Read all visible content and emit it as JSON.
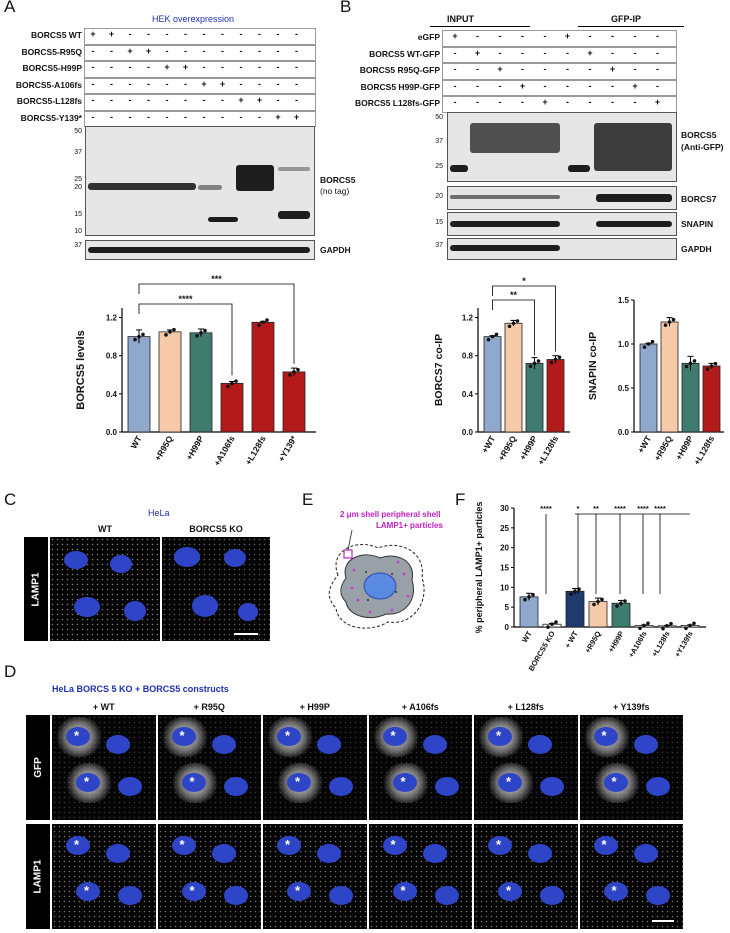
{
  "panels": {
    "A": "A",
    "B": "B",
    "C": "C",
    "D": "D",
    "E": "E",
    "F": "F"
  },
  "A": {
    "title": "HEK overexpression",
    "rows": [
      "BORCS5 WT",
      "BORCS5-R95Q",
      "BORCS5-H99P",
      "BORCS5-A106fs",
      "BORCS5-L128fs",
      "BORCS5-Y139*"
    ],
    "matrix": [
      [
        "+",
        "+",
        "-",
        "-",
        "-",
        "-",
        "-",
        "-",
        "-",
        "-",
        "-",
        "-"
      ],
      [
        "-",
        "-",
        "+",
        "+",
        "-",
        "-",
        "-",
        "-",
        "-",
        "-",
        "-",
        "-"
      ],
      [
        "-",
        "-",
        "-",
        "-",
        "+",
        "+",
        "-",
        "-",
        "-",
        "-",
        "-",
        "-"
      ],
      [
        "-",
        "-",
        "-",
        "-",
        "-",
        "-",
        "+",
        "+",
        "-",
        "-",
        "-",
        "-"
      ],
      [
        "-",
        "-",
        "-",
        "-",
        "-",
        "-",
        "-",
        "-",
        "+",
        "+",
        "-",
        "-"
      ],
      [
        "-",
        "-",
        "-",
        "-",
        "-",
        "-",
        "-",
        "-",
        "-",
        "-",
        "+",
        "+"
      ]
    ],
    "mw_main": [
      "50",
      "37",
      "25",
      "20",
      "15",
      "10"
    ],
    "mw_gapdh": [
      "37"
    ],
    "blot_label_1": "BORCS5",
    "blot_label_2": "(no tag)",
    "gapdh_label": "GAPDH"
  },
  "B": {
    "input_label": "INPUT",
    "gfpip_label": "GFP-IP",
    "rows": [
      "eGFP",
      "BORCS5 WT-GFP",
      "BORCS5 R95Q-GFP",
      "BORCS5 H99P-GFP",
      "BORCS5 L128fs-GFP"
    ],
    "matrix": [
      [
        "+",
        "-",
        "-",
        "-",
        "-",
        "+",
        "-",
        "-",
        "-",
        "-"
      ],
      [
        "-",
        "+",
        "-",
        "-",
        "-",
        "-",
        "+",
        "-",
        "-",
        "-"
      ],
      [
        "-",
        "-",
        "+",
        "-",
        "-",
        "-",
        "-",
        "+",
        "-",
        "-"
      ],
      [
        "-",
        "-",
        "-",
        "+",
        "-",
        "-",
        "-",
        "-",
        "+",
        "-"
      ],
      [
        "-",
        "-",
        "-",
        "-",
        "+",
        "-",
        "-",
        "-",
        "-",
        "+"
      ]
    ],
    "mw_main": [
      "50",
      "37",
      "25"
    ],
    "mw_borcs7": [
      "20"
    ],
    "mw_snapin": [
      "15"
    ],
    "mw_gapdh": [
      "37"
    ],
    "label_borcs5_1": "BORCS5",
    "label_borcs5_2": "(Anti-GFP)",
    "label_borcs7": "BORCS7",
    "label_snapin": "SNAPIN",
    "label_gapdh": "GAPDH"
  },
  "C": {
    "title": "HeLa",
    "cols": [
      "WT",
      "BORCS5 KO"
    ],
    "row_label": "LAMP1"
  },
  "D": {
    "title": "HeLa BORCS 5 KO + BORCS5 constructs",
    "cols": [
      "+ WT",
      "+ R95Q",
      "+ H99P",
      "+ A106fs",
      "+ L128fs",
      "+ Y139fs"
    ],
    "rows": [
      "GFP",
      "LAMP1"
    ],
    "asterisk": "*"
  },
  "E": {
    "label_1": "2 μm shell peripheral shell",
    "label_2": "LAMP1+ particles"
  },
  "chart_data": [
    {
      "id": "A",
      "type": "bar",
      "ylabel": "BORCS5 levels",
      "categories": [
        "WT",
        "+R95Q",
        "+H99P",
        "+A106fs",
        "+L128fs",
        "+Y139*"
      ],
      "values": [
        1.0,
        1.05,
        1.04,
        0.51,
        1.15,
        0.63
      ],
      "errors": [
        0.07,
        0.02,
        0.04,
        0.02,
        0.01,
        0.04
      ],
      "ylim": [
        0,
        1.3
      ],
      "yticks": [
        "0.0",
        "0.4",
        "0.8",
        "1.2"
      ],
      "colors": [
        "#8fa9cc",
        "#f6c9a9",
        "#3f7c6f",
        "#b31b1b",
        "#b31b1b",
        "#b31b1b"
      ],
      "significance": [
        {
          "from": 0,
          "to": 3,
          "label": "****"
        },
        {
          "from": 0,
          "to": 5,
          "label": "***"
        }
      ]
    },
    {
      "id": "B1",
      "type": "bar",
      "ylabel": "BORCS7 co-IP",
      "categories": [
        "+WT",
        "+R95Q",
        "+H99P",
        "+L128fs"
      ],
      "values": [
        1.0,
        1.14,
        0.72,
        0.76
      ],
      "errors": [
        0.01,
        0.03,
        0.06,
        0.04
      ],
      "ylim": [
        0,
        1.3
      ],
      "yticks": [
        "0.0",
        "0.4",
        "0.8",
        "1.2"
      ],
      "colors": [
        "#8fa9cc",
        "#f6c9a9",
        "#3f7c6f",
        "#b31b1b"
      ],
      "significance": [
        {
          "from": 0,
          "to": 2,
          "label": "**"
        },
        {
          "from": 0,
          "to": 3,
          "label": "*"
        }
      ]
    },
    {
      "id": "B2",
      "type": "bar",
      "ylabel": "SNAPIN co-IP",
      "categories": [
        "+WT",
        "+R95Q",
        "+H99P",
        "+L128fs"
      ],
      "values": [
        1.0,
        1.25,
        0.78,
        0.75
      ],
      "errors": [
        0.01,
        0.05,
        0.08,
        0.03
      ],
      "ylim": [
        0,
        1.5
      ],
      "yticks": [
        "0.0",
        "0.5",
        "1.0",
        "1.5"
      ],
      "colors": [
        "#8fa9cc",
        "#f6c9a9",
        "#3f7c6f",
        "#b31b1b"
      ],
      "significance": []
    },
    {
      "id": "F",
      "type": "bar",
      "ylabel": "% peripheral LAMP1+ particles",
      "categories": [
        "WT",
        "BORCS5 KO",
        "+ WT",
        "+R95Q",
        "+H99P",
        "+A106fs",
        "+L128fs",
        "+Y139fs"
      ],
      "values": [
        7.6,
        0.7,
        9.0,
        6.4,
        6.0,
        0.4,
        0.3,
        0.4
      ],
      "errors": [
        0.9,
        0.2,
        0.7,
        0.9,
        0.7,
        0.1,
        0.1,
        0.1
      ],
      "ylim": [
        0,
        30
      ],
      "yticks": [
        "0",
        "5",
        "10",
        "15",
        "20",
        "25",
        "30"
      ],
      "colors": [
        "#8fa9cc",
        "#ffffff",
        "#1f3a6e",
        "#f6c9a9",
        "#3f7c6f",
        "#ffffff",
        "#ffffff",
        "#ffffff"
      ],
      "significance_labels": [
        "****",
        "*",
        "**",
        "****",
        "****",
        "****"
      ]
    }
  ]
}
